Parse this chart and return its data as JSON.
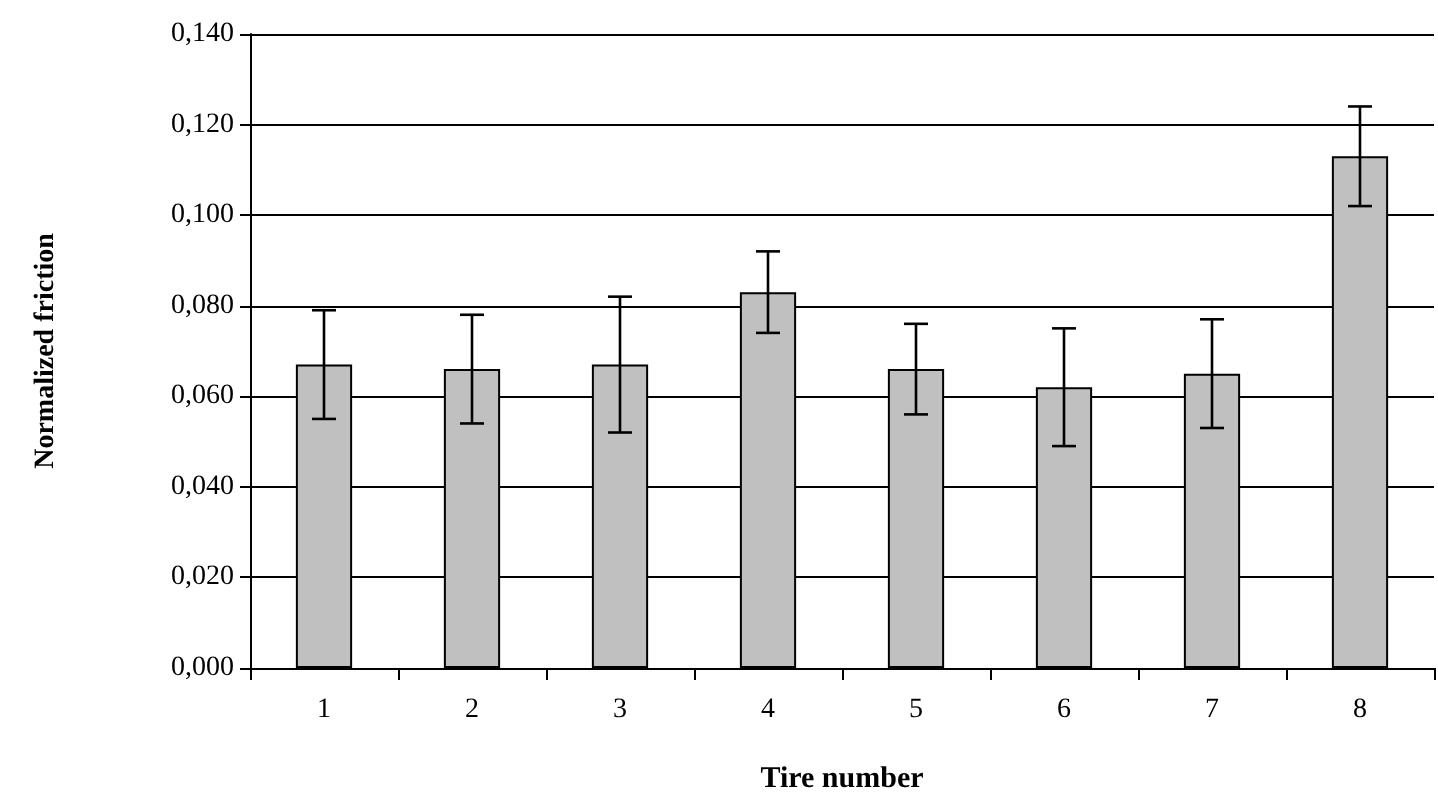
{
  "chart_data": {
    "type": "bar",
    "xlabel": "Tire number",
    "ylabel": "Normalized friction",
    "categories": [
      "1",
      "2",
      "3",
      "4",
      "5",
      "6",
      "7",
      "8"
    ],
    "values": [
      0.067,
      0.066,
      0.067,
      0.083,
      0.066,
      0.062,
      0.065,
      0.113
    ],
    "errors": [
      0.012,
      0.012,
      0.015,
      0.009,
      0.01,
      0.013,
      0.012,
      0.011
    ],
    "color": "#c0c0c0",
    "ylim": [
      0,
      0.14
    ],
    "yticks": [
      {
        "value": 0,
        "label": "0,000"
      },
      {
        "value": 0.02,
        "label": "0,020"
      },
      {
        "value": 0.04,
        "label": "0,040"
      },
      {
        "value": 0.06,
        "label": "0,060"
      },
      {
        "value": 0.08,
        "label": "0,080"
      },
      {
        "value": 0.1,
        "label": "0,100"
      },
      {
        "value": 0.12,
        "label": "0,120"
      },
      {
        "value": 0.14,
        "label": "0,140"
      }
    ],
    "grid": "y"
  }
}
